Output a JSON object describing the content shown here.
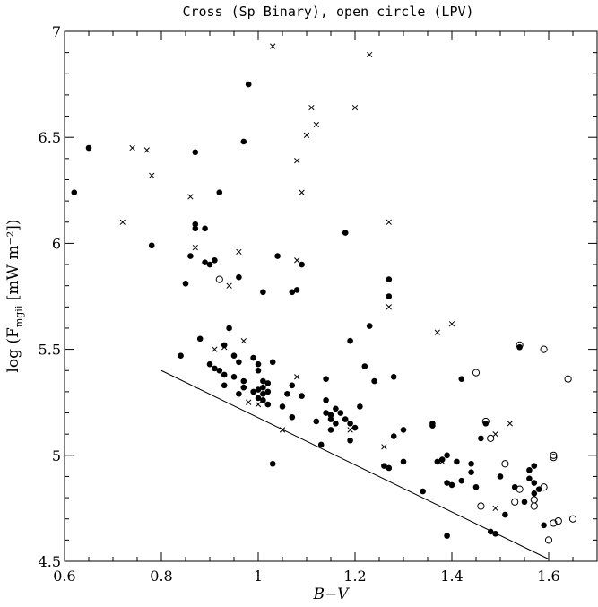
{
  "chart_data": {
    "type": "scatter",
    "title": "Cross (Sp Binary), open circle (LPV)",
    "xlabel": "B−V",
    "ylabel_prefix": "log (F",
    "ylabel_sub": "mgii",
    "ylabel_suffix": " [mW m⁻²])",
    "xlim": [
      0.6,
      1.7
    ],
    "ylim": [
      4.5,
      7.0
    ],
    "xticks": [
      "0.6",
      "0.8",
      "1",
      "1.2",
      "1.4",
      "1.6"
    ],
    "xtick_values": [
      0.6,
      0.8,
      1.0,
      1.2,
      1.4,
      1.6
    ],
    "yticks": [
      "4.5",
      "5",
      "5.5",
      "6",
      "6.5",
      "7"
    ],
    "ytick_values": [
      4.5,
      5.0,
      5.5,
      6.0,
      6.5,
      7.0
    ],
    "line": {
      "x": [
        0.8,
        1.6
      ],
      "y": [
        5.4,
        4.51
      ]
    },
    "series": [
      {
        "marker": "filled-circle",
        "points": [
          [
            0.62,
            6.24
          ],
          [
            0.65,
            6.45
          ],
          [
            0.78,
            5.99
          ],
          [
            0.87,
            6.43
          ],
          [
            0.92,
            6.24
          ],
          [
            0.97,
            6.48
          ],
          [
            0.98,
            6.75
          ],
          [
            0.87,
            6.09
          ],
          [
            0.87,
            6.07
          ],
          [
            0.89,
            6.07
          ],
          [
            0.86,
            5.94
          ],
          [
            0.89,
            5.91
          ],
          [
            0.9,
            5.9
          ],
          [
            0.91,
            5.92
          ],
          [
            0.85,
            5.81
          ],
          [
            0.96,
            5.84
          ],
          [
            1.01,
            5.77
          ],
          [
            1.04,
            5.94
          ],
          [
            1.07,
            5.77
          ],
          [
            1.08,
            5.78
          ],
          [
            1.09,
            5.9
          ],
          [
            1.18,
            6.05
          ],
          [
            1.27,
            5.83
          ],
          [
            1.27,
            5.75
          ],
          [
            1.23,
            5.61
          ],
          [
            1.19,
            5.54
          ],
          [
            0.84,
            5.47
          ],
          [
            0.88,
            5.55
          ],
          [
            0.94,
            5.6
          ],
          [
            0.93,
            5.52
          ],
          [
            0.95,
            5.47
          ],
          [
            0.96,
            5.44
          ],
          [
            0.9,
            5.43
          ],
          [
            0.91,
            5.41
          ],
          [
            0.92,
            5.4
          ],
          [
            0.93,
            5.38
          ],
          [
            0.95,
            5.37
          ],
          [
            0.97,
            5.35
          ],
          [
            0.97,
            5.32
          ],
          [
            0.99,
            5.46
          ],
          [
            1.0,
            5.43
          ],
          [
            1.0,
            5.4
          ],
          [
            1.01,
            5.35
          ],
          [
            1.02,
            5.34
          ],
          [
            1.01,
            5.32
          ],
          [
            1.03,
            5.44
          ],
          [
            1.0,
            5.31
          ],
          [
            0.99,
            5.3
          ],
          [
            1.01,
            5.29
          ],
          [
            1.02,
            5.3
          ],
          [
            1.0,
            5.27
          ],
          [
            1.01,
            5.26
          ],
          [
            0.96,
            5.29
          ],
          [
            0.93,
            5.33
          ],
          [
            1.02,
            5.24
          ],
          [
            1.05,
            5.23
          ],
          [
            1.06,
            5.29
          ],
          [
            1.07,
            5.33
          ],
          [
            1.09,
            5.28
          ],
          [
            1.07,
            5.18
          ],
          [
            1.03,
            4.96
          ],
          [
            1.12,
            5.16
          ],
          [
            1.14,
            5.36
          ],
          [
            1.14,
            5.26
          ],
          [
            1.14,
            5.2
          ],
          [
            1.15,
            5.17
          ],
          [
            1.16,
            5.22
          ],
          [
            1.15,
            5.19
          ],
          [
            1.16,
            5.15
          ],
          [
            1.17,
            5.2
          ],
          [
            1.18,
            5.17
          ],
          [
            1.15,
            5.12
          ],
          [
            1.19,
            5.15
          ],
          [
            1.2,
            5.13
          ],
          [
            1.21,
            5.23
          ],
          [
            1.22,
            5.42
          ],
          [
            1.24,
            5.35
          ],
          [
            1.19,
            5.07
          ],
          [
            1.13,
            5.05
          ],
          [
            1.28,
            5.37
          ],
          [
            1.28,
            5.09
          ],
          [
            1.26,
            4.95
          ],
          [
            1.27,
            4.94
          ],
          [
            1.3,
            5.12
          ],
          [
            1.3,
            4.97
          ],
          [
            1.34,
            4.83
          ],
          [
            1.36,
            5.15
          ],
          [
            1.36,
            5.14
          ],
          [
            1.37,
            4.97
          ],
          [
            1.38,
            4.98
          ],
          [
            1.39,
            5.0
          ],
          [
            1.39,
            4.87
          ],
          [
            1.4,
            4.86
          ],
          [
            1.41,
            4.97
          ],
          [
            1.42,
            5.36
          ],
          [
            1.42,
            4.88
          ],
          [
            1.44,
            4.96
          ],
          [
            1.44,
            4.92
          ],
          [
            1.45,
            4.85
          ],
          [
            1.46,
            5.08
          ],
          [
            1.47,
            5.15
          ],
          [
            1.48,
            4.64
          ],
          [
            1.49,
            4.63
          ],
          [
            1.5,
            4.9
          ],
          [
            1.51,
            4.72
          ],
          [
            1.53,
            4.85
          ],
          [
            1.54,
            5.51
          ],
          [
            1.55,
            4.78
          ],
          [
            1.56,
            4.93
          ],
          [
            1.56,
            4.89
          ],
          [
            1.57,
            4.95
          ],
          [
            1.57,
            4.87
          ],
          [
            1.57,
            4.82
          ],
          [
            1.58,
            4.84
          ],
          [
            1.59,
            4.67
          ],
          [
            1.39,
            4.62
          ]
        ]
      },
      {
        "name": "Sp Binary",
        "marker": "cross",
        "points": [
          [
            0.74,
            6.45
          ],
          [
            0.77,
            6.44
          ],
          [
            0.78,
            6.32
          ],
          [
            0.72,
            6.1
          ],
          [
            0.86,
            6.22
          ],
          [
            0.87,
            5.98
          ],
          [
            0.94,
            5.8
          ],
          [
            0.96,
            5.96
          ],
          [
            1.03,
            6.93
          ],
          [
            1.08,
            6.39
          ],
          [
            1.09,
            6.24
          ],
          [
            1.1,
            6.51
          ],
          [
            1.11,
            6.64
          ],
          [
            1.12,
            6.56
          ],
          [
            1.2,
            6.64
          ],
          [
            1.23,
            6.89
          ],
          [
            1.27,
            6.1
          ],
          [
            1.08,
            5.92
          ],
          [
            1.27,
            5.7
          ],
          [
            1.37,
            5.58
          ],
          [
            1.4,
            5.62
          ],
          [
            0.91,
            5.5
          ],
          [
            0.93,
            5.51
          ],
          [
            0.97,
            5.54
          ],
          [
            0.98,
            5.25
          ],
          [
            1.0,
            5.24
          ],
          [
            1.05,
            5.12
          ],
          [
            1.08,
            5.37
          ],
          [
            1.19,
            5.12
          ],
          [
            1.26,
            5.04
          ],
          [
            1.38,
            4.97
          ],
          [
            1.49,
            5.1
          ],
          [
            1.49,
            4.75
          ],
          [
            1.52,
            5.15
          ]
        ]
      },
      {
        "name": "LPV",
        "marker": "open-circle",
        "points": [
          [
            0.92,
            5.83
          ],
          [
            1.45,
            5.39
          ],
          [
            1.47,
            5.16
          ],
          [
            1.48,
            5.08
          ],
          [
            1.51,
            4.96
          ],
          [
            1.46,
            4.76
          ],
          [
            1.53,
            4.78
          ],
          [
            1.54,
            5.52
          ],
          [
            1.54,
            4.84
          ],
          [
            1.57,
            4.79
          ],
          [
            1.57,
            4.76
          ],
          [
            1.59,
            5.5
          ],
          [
            1.59,
            4.85
          ],
          [
            1.6,
            4.6
          ],
          [
            1.61,
            5.0
          ],
          [
            1.61,
            4.99
          ],
          [
            1.61,
            4.68
          ],
          [
            1.62,
            4.69
          ],
          [
            1.64,
            5.36
          ],
          [
            1.65,
            4.7
          ]
        ]
      }
    ]
  }
}
